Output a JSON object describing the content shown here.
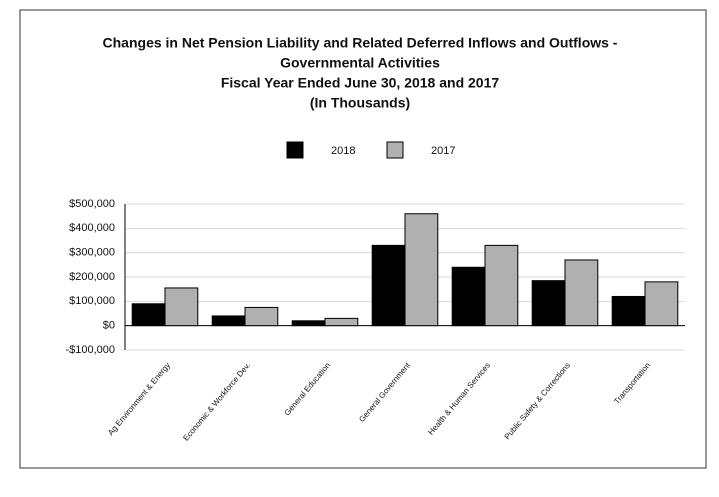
{
  "chart_data": {
    "type": "bar",
    "title": [
      "Changes in Net Pension Liability and Related Deferred Inflows and Outflows -",
      "Governmental Activities",
      "Fiscal Year Ended June 30, 2018 and 2017",
      "(In Thousands)"
    ],
    "categories": [
      "Ag Environment & Energy",
      "Economic & Workforce Dev.",
      "General Education",
      "General Government",
      "Health & Human Services",
      "Public Safety & Corrections",
      "Transportation"
    ],
    "series": [
      {
        "name": "2018",
        "color": "#000000",
        "values": [
          90000,
          40000,
          20000,
          330000,
          240000,
          185000,
          120000
        ]
      },
      {
        "name": "2017",
        "color": "#b0b0b0",
        "values": [
          155000,
          75000,
          30000,
          460000,
          330000,
          270000,
          180000
        ]
      }
    ],
    "ylim": [
      -100000,
      500000
    ],
    "yticks": [
      {
        "value": -100000,
        "label": "-$100,000"
      },
      {
        "value": 0,
        "label": "$0"
      },
      {
        "value": 100000,
        "label": "$100,000"
      },
      {
        "value": 200000,
        "label": "$200,000"
      },
      {
        "value": 300000,
        "label": "$300,000"
      },
      {
        "value": 400000,
        "label": "$400,000"
      },
      {
        "value": 500000,
        "label": "$500,000"
      }
    ],
    "grid": true,
    "legend": "top"
  }
}
